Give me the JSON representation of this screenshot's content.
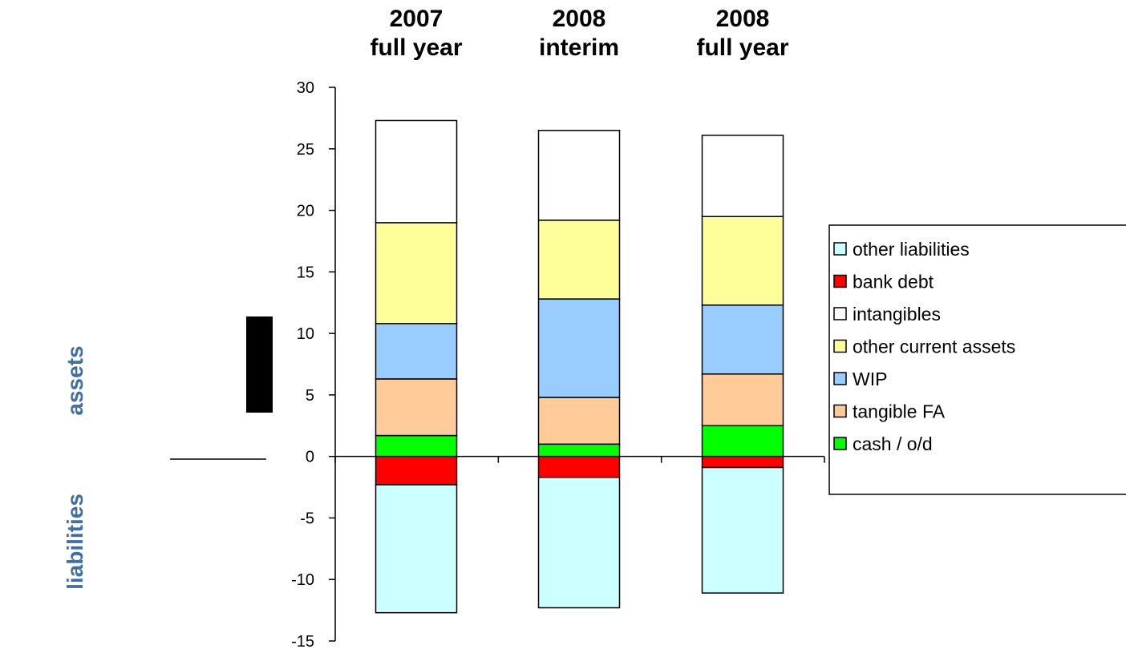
{
  "side_labels": {
    "assets": "assets",
    "liabilities": "liabilities"
  },
  "chart_data": {
    "type": "bar",
    "stacked": true,
    "categories": [
      [
        "2007",
        "full year"
      ],
      [
        "2008",
        "interim"
      ],
      [
        "2008",
        "full year"
      ]
    ],
    "ylim": [
      -15,
      30
    ],
    "yticks": [
      30,
      25,
      20,
      15,
      10,
      5,
      0,
      -5,
      -10,
      -15
    ],
    "grid": false,
    "legend_position": "right",
    "series": [
      {
        "name": "cash / o/d",
        "color": "#00ff00",
        "values": [
          1.7,
          1.0,
          2.5
        ]
      },
      {
        "name": "tangible FA",
        "color": "#ffcc99",
        "values": [
          4.6,
          3.8,
          4.2
        ]
      },
      {
        "name": "WIP",
        "color": "#99ccff",
        "values": [
          4.5,
          8.0,
          5.6
        ]
      },
      {
        "name": "other current assets",
        "color": "#ffff99",
        "values": [
          8.2,
          6.4,
          7.2
        ]
      },
      {
        "name": "intangibles",
        "color": "#ffffff",
        "values": [
          8.3,
          7.3,
          6.6
        ]
      },
      {
        "name": "bank debt",
        "color": "#ff0000",
        "values": [
          -2.3,
          -1.7,
          -0.9
        ]
      },
      {
        "name": "other liabilities",
        "color": "#ccffff",
        "values": [
          -10.4,
          -10.6,
          -10.2
        ]
      }
    ],
    "legend_order": [
      "other liabilities",
      "bank debt",
      "intangibles",
      "other current assets",
      "WIP",
      "tangible FA",
      "cash / o/d"
    ]
  }
}
